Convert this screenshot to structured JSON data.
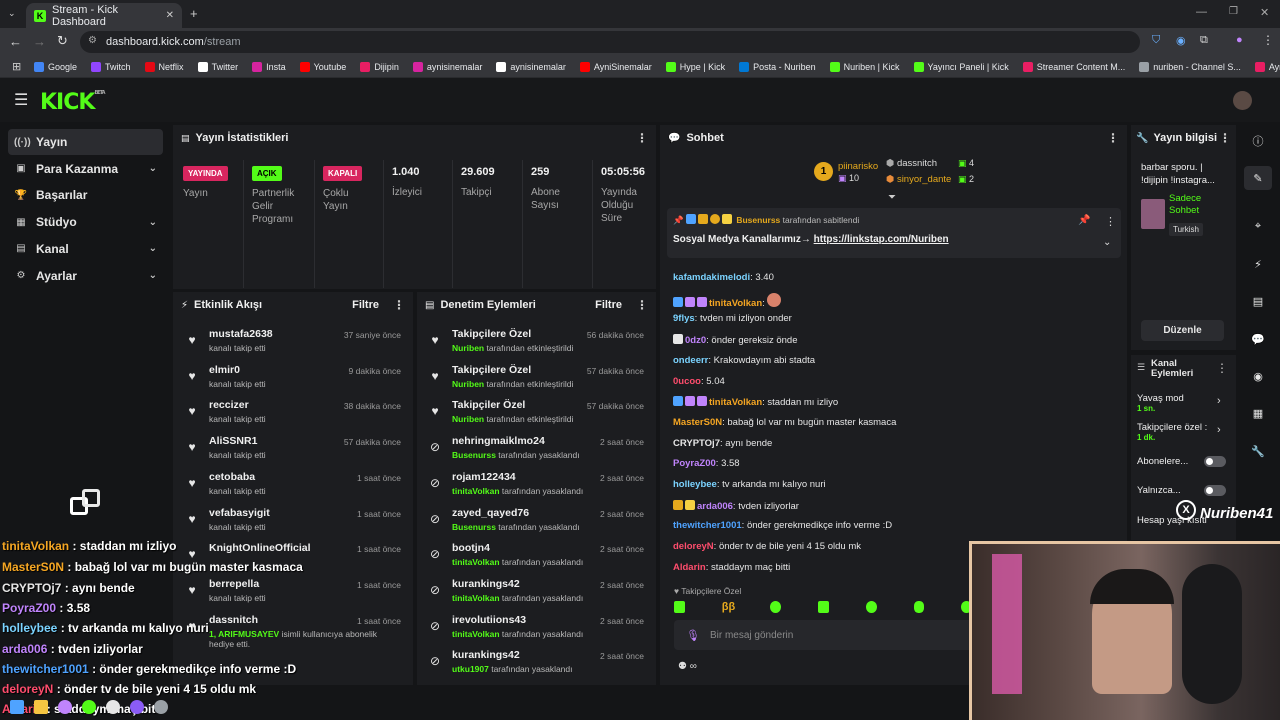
{
  "browser": {
    "tab_title": "Stream - Kick Dashboard",
    "url_host": "dashboard.kick.com",
    "url_path": "/stream",
    "bookmarks": [
      {
        "label": "Google",
        "color": "#4285f4"
      },
      {
        "label": "Twitch",
        "color": "#9146ff"
      },
      {
        "label": "Netflix",
        "color": "#e50914"
      },
      {
        "label": "Twitter",
        "color": "#ffffff"
      },
      {
        "label": "Insta",
        "color": "#d6249f"
      },
      {
        "label": "Youtube",
        "color": "#ff0000"
      },
      {
        "label": "Dijipin",
        "color": "#e91e63"
      },
      {
        "label": "aynisinemalar",
        "color": "#d6249f"
      },
      {
        "label": "aynisinemalar",
        "color": "#ffffff"
      },
      {
        "label": "AyniSinemalar",
        "color": "#ff0000"
      },
      {
        "label": "Hype | Kick",
        "color": "#53fc18"
      },
      {
        "label": "Posta - Nuriben",
        "color": "#0078d4"
      },
      {
        "label": "Nuriben | Kick",
        "color": "#53fc18"
      },
      {
        "label": "Yayıncı Paneli | Kick",
        "color": "#53fc18"
      },
      {
        "label": "Streamer Content M...",
        "color": "#e91e63"
      },
      {
        "label": "nuriben - Channel S...",
        "color": "#9aa0a6"
      },
      {
        "label": "Aynı Sinemalar - Ça...",
        "color": "#e91e63"
      }
    ]
  },
  "header": {
    "logo": "KICK",
    "beta": "BETA"
  },
  "sidebar": {
    "items": [
      {
        "label": "Yayın",
        "icon": "broadcast-icon",
        "glyph": "((·))",
        "chevron": false
      },
      {
        "label": "Para Kazanma",
        "icon": "money-icon",
        "glyph": "▣",
        "chevron": true
      },
      {
        "label": "Başarılar",
        "icon": "trophy-icon",
        "glyph": "🏆",
        "chevron": false
      },
      {
        "label": "Stüdyo",
        "icon": "studio-icon",
        "glyph": "▦",
        "chevron": true
      },
      {
        "label": "Kanal",
        "icon": "channel-icon",
        "glyph": "▤",
        "chevron": true
      },
      {
        "label": "Ayarlar",
        "icon": "gear-icon",
        "glyph": "⚙",
        "chevron": true
      }
    ]
  },
  "stats": {
    "title": "Yayın İstatistikleri",
    "cells": [
      {
        "badge": "YAYINDA",
        "badge_color": "#d8265f",
        "label": "Yayın"
      },
      {
        "badge": "AÇIK",
        "badge_color": "#53fc18",
        "label": "Partnerlik Gelir Programı"
      },
      {
        "badge": "KAPALI",
        "badge_color": "#d8265f",
        "label": "Çoklu Yayın"
      },
      {
        "value": "1.040",
        "label": "İzleyici"
      },
      {
        "value": "29.609",
        "label": "Takipçi"
      },
      {
        "value": "259",
        "label": "Abone Sayısı"
      },
      {
        "value": "05:05:56",
        "label": "Yayında Olduğu Süre"
      }
    ]
  },
  "activity": {
    "title": "Etkinlik Akışı",
    "filter": "Filtre",
    "items": [
      {
        "name": "mustafa2638",
        "sub": "kanalı takip etti",
        "time": "37 saniye önce"
      },
      {
        "name": "elmir0",
        "sub": "kanalı takip etti",
        "time": "9 dakika önce"
      },
      {
        "name": "reccizer",
        "sub": "kanalı takip etti",
        "time": "38 dakika önce"
      },
      {
        "name": "AliSSNR1",
        "sub": "kanalı takip etti",
        "time": "57 dakika önce"
      },
      {
        "name": "cetobaba",
        "sub": "kanalı takip etti",
        "time": "1 saat önce"
      },
      {
        "name": "vefabasyigit",
        "sub": "kanalı takip etti",
        "time": "1 saat önce"
      },
      {
        "name": "KnightOnlineOfficial",
        "sub": "",
        "time": "1 saat önce"
      },
      {
        "name": "berrepella",
        "sub": "kanalı takip etti",
        "time": "1 saat önce"
      },
      {
        "name": "dassnitch",
        "sub_green": "1, ARIFMUSAYEV",
        "sub": " isimli kullanıcıya abonelik hediye etti.",
        "time": "1 saat önce"
      }
    ]
  },
  "moderation": {
    "title": "Denetim Eylemleri",
    "filter": "Filtre",
    "items": [
      {
        "name": "Takipçilere Özel",
        "actor": "Nuriben",
        "sub": " tarafından etkinleştirildi",
        "time": "56 dakika önce",
        "icon": "heart-icon"
      },
      {
        "name": "Takipçilere Özel",
        "actor": "Nuriben",
        "sub": " tarafından etkinleştirildi",
        "time": "57 dakika önce",
        "icon": "heart-icon"
      },
      {
        "name": "Takipçiler Özel",
        "actor": "Nuriben",
        "sub": " tarafından etkinleştirildi",
        "time": "57 dakika önce",
        "icon": "heart-icon"
      },
      {
        "name": "nehringmaiklmo24",
        "actor": "Busenurss",
        "sub": " tarafından yasaklandı",
        "time": "2 saat önce",
        "icon": "ban-icon"
      },
      {
        "name": "rojam122434",
        "actor": "tinitaVolkan",
        "sub": " tarafından yasaklandı",
        "time": "2 saat önce",
        "icon": "ban-icon"
      },
      {
        "name": "zayed_qayed76",
        "actor": "Busenurss",
        "sub": " tarafından yasaklandı",
        "time": "2 saat önce",
        "icon": "ban-icon"
      },
      {
        "name": "bootjn4",
        "actor": "tinitaVolkan",
        "sub": " tarafından yasaklandı",
        "time": "2 saat önce",
        "icon": "ban-icon"
      },
      {
        "name": "kurankings42",
        "actor": "tinitaVolkan",
        "sub": " tarafından yasaklandı",
        "time": "2 saat önce",
        "icon": "ban-icon"
      },
      {
        "name": "irevolutiions43",
        "actor": "tinitaVolkan",
        "sub": " tarafından yasaklandı",
        "time": "2 saat önce",
        "icon": "ban-icon"
      },
      {
        "name": "kurankings42",
        "actor": "utku1907",
        "sub": " tarafından yasaklandı",
        "time": "2 saat önce",
        "icon": "ban-icon"
      }
    ]
  },
  "chat": {
    "title": "Sohbet",
    "top_gifters": [
      {
        "rank": "1",
        "name": "piinarisko",
        "count": "10"
      },
      {
        "name": "dassnitch",
        "count": "4"
      },
      {
        "name": "sinyor_dante",
        "count": "2"
      }
    ],
    "pinned": {
      "by": "Busenurss",
      "by_suffix": "tarafından sabitlendi",
      "text": "Sosyal Medya Kanallarımız→",
      "link": "https://linkstap.com/Nuriben"
    },
    "messages": [
      {
        "user": "kafamdakimelodi",
        "color": "#7bd3ff",
        "text": "3.40"
      },
      {
        "user": "tinitaVolkan",
        "color": "#f5a623",
        "text": ""
      },
      {
        "user": "9flys",
        "color": "#7bd3ff",
        "text": "tvden mi izliyon onder"
      },
      {
        "user": "0dz0",
        "color": "#c084fc",
        "text": "önder gereksiz önde"
      },
      {
        "user": "ondeerr",
        "color": "#7bd3ff",
        "text": "Krakowdayım abi stadta"
      },
      {
        "user": "0ucoo",
        "color": "#ff4d6d",
        "text": "5.04"
      },
      {
        "user": "tinitaVolkan",
        "color": "#f5a623",
        "text": "staddan mı izliyo"
      },
      {
        "user": "MasterS0N",
        "color": "#f5a623",
        "text": "babağ lol var mı bugün master kasmaca"
      },
      {
        "user": "CRYPTOj7",
        "color": "#e6e6e6",
        "text": "aynı bende"
      },
      {
        "user": "PoyraZ00",
        "color": "#c084fc",
        "text": "3.58"
      },
      {
        "user": "holleybee",
        "color": "#7bd3ff",
        "text": "tv arkanda mı kalıyo nuri"
      },
      {
        "user": "arda006",
        "color": "#c084fc",
        "text": "tvden izliyorlar"
      },
      {
        "user": "thewitcher1001",
        "color": "#4fa3ff",
        "text": "önder gerekmedikçe info verme :D"
      },
      {
        "user": "deloreyN",
        "color": "#ff4d6d",
        "text": "önder tv de bile yeni 4 15 oldu mk"
      },
      {
        "user": "Aldarin",
        "color": "#ff4d6d",
        "text": "staddaym maç bitti"
      }
    ],
    "followers_only": "Takipçilere Özel",
    "input_placeholder": "Bir mesaj gönderin"
  },
  "stream_info": {
    "title": "Yayın bilgisi",
    "desc": "barbar sporu. | !dijipin !instagra...",
    "mode": "Sadece Sohbet",
    "lang": "Turkish",
    "edit": "Düzenle"
  },
  "channel_actions": {
    "title": "Kanal Eylemleri",
    "slow_mode": "Yavaş mod",
    "slow_value": "1 sn.",
    "followers": "Takipçilere özel :",
    "followers_value": "1 dk.",
    "subs": "Abonelere...",
    "only": "Yalnızca...",
    "age": "Hesap yaşı kısıtl"
  },
  "overlay": {
    "handle": "Nuriben41",
    "lines": [
      {
        "user": "tinitaVolkan",
        "color": "#f5a623",
        "text": ": staddan mı izliyo"
      },
      {
        "user": "MasterS0N",
        "color": "#f5a623",
        "text": ": babağ lol var mı bugün master kasmaca"
      },
      {
        "user": "CRYPTOj7",
        "color": "#e6e6e6",
        "text": ": aynı bende"
      },
      {
        "user": "PoyraZ00",
        "color": "#c084fc",
        "text": ": 3.58"
      },
      {
        "user": "holleybee",
        "color": "#7bd3ff",
        "text": ": tv arkanda mı kalıyo nuri"
      },
      {
        "user": "arda006",
        "color": "#c084fc",
        "text": ": tvden izliyorlar"
      },
      {
        "user": "thewitcher1001",
        "color": "#4fa3ff",
        "text": ": önder gerekmedikçe info verme :D"
      },
      {
        "user": "deloreyN",
        "color": "#ff4d6d",
        "text": ": önder tv de bile yeni 4 15 oldu mk"
      },
      {
        "user": "Aldarin",
        "color": "#ff4d6d",
        "text": ": staddaym maç bitti"
      }
    ]
  }
}
